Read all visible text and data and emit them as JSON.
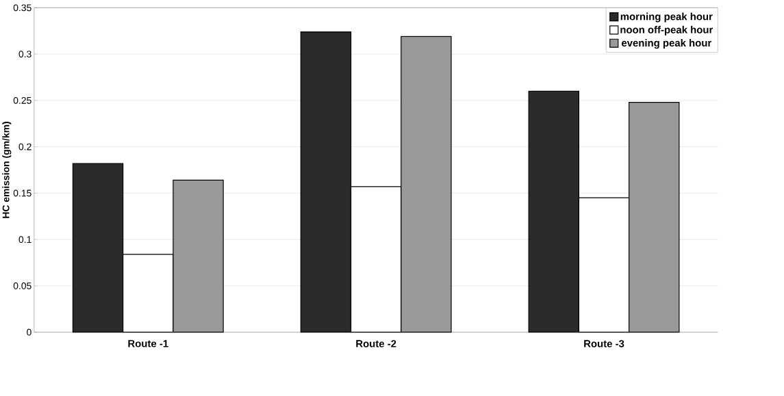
{
  "chart_data": {
    "type": "bar",
    "ylabel": "HC emission  (gm/km)",
    "categories": [
      "Route -1",
      "Route -2",
      "Route -3"
    ],
    "series": [
      {
        "name": "morning peak hour",
        "color": "#2b2b2b",
        "values": [
          0.182,
          0.324,
          0.26
        ]
      },
      {
        "name": "noon off-peak hour",
        "color": "#ffffff",
        "values": [
          0.084,
          0.157,
          0.145
        ]
      },
      {
        "name": "evening peak hour",
        "color": "#999999",
        "values": [
          0.164,
          0.319,
          0.248
        ]
      }
    ],
    "ylim": [
      0,
      0.35
    ],
    "yticks": [
      0,
      0.05,
      0.1,
      0.15,
      0.2,
      0.25,
      0.3,
      0.35
    ],
    "grid": "y",
    "legend": "top right"
  }
}
